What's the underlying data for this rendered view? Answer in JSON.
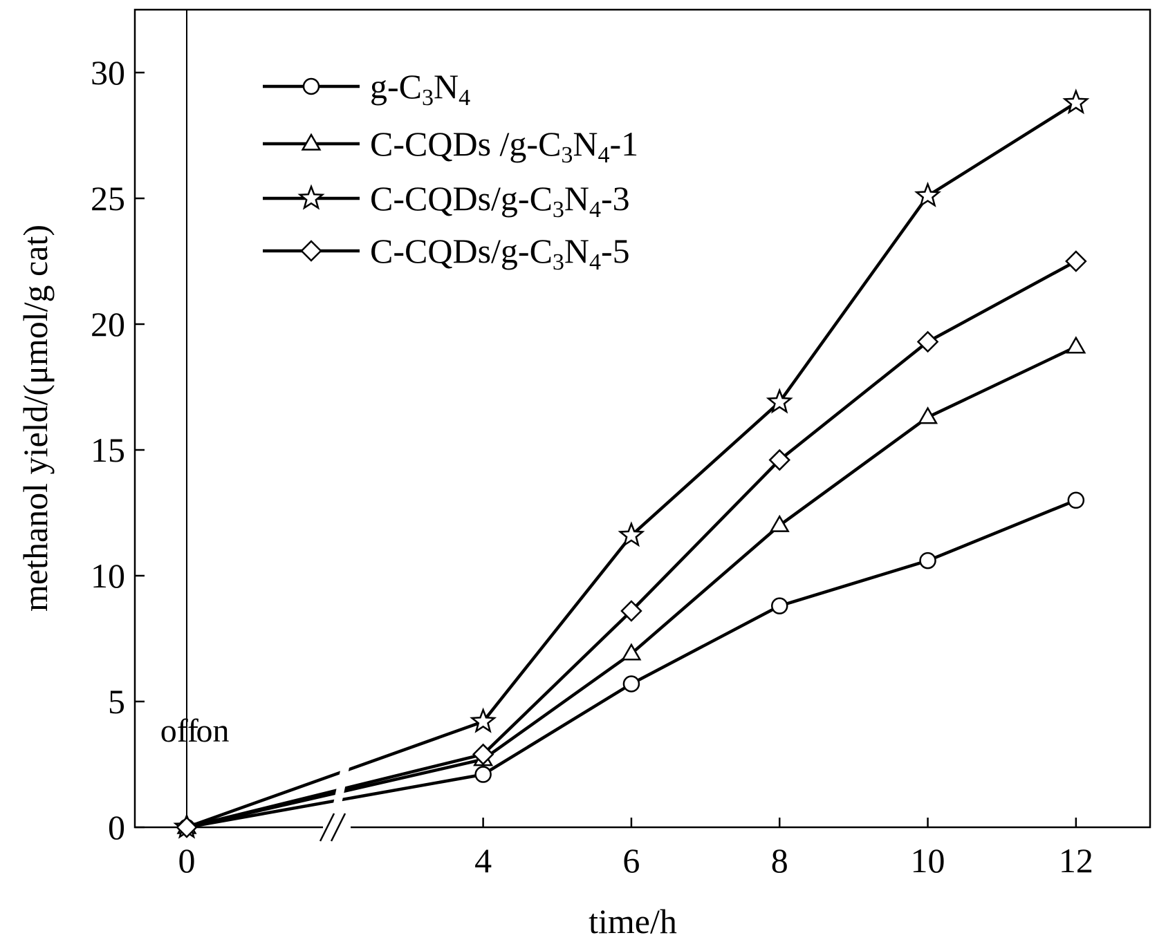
{
  "chart_data": {
    "type": "line",
    "title": "",
    "xlabel": "time/h",
    "ylabel": "methanol yield/(μmol/g cat)",
    "xlim": [
      -0.7,
      13
    ],
    "ylim": [
      0,
      32.5
    ],
    "x_axis_break": [
      1.2,
      3
    ],
    "x": [
      0,
      4,
      6,
      8,
      10,
      12
    ],
    "x_ticks": [
      {
        "value": 0,
        "label": "0"
      },
      {
        "value": 4,
        "label": "4"
      },
      {
        "value": 6,
        "label": "6"
      },
      {
        "value": 8,
        "label": "8"
      },
      {
        "value": 10,
        "label": "10"
      },
      {
        "value": 12,
        "label": "12"
      }
    ],
    "y_ticks": [
      {
        "value": 0,
        "label": "0"
      },
      {
        "value": 5,
        "label": "5"
      },
      {
        "value": 10,
        "label": "10"
      },
      {
        "value": 15,
        "label": "15"
      },
      {
        "value": 20,
        "label": "20"
      },
      {
        "value": 25,
        "label": "25"
      },
      {
        "value": 30,
        "label": "30"
      }
    ],
    "series": [
      {
        "name": "g-C3N4",
        "label_main": "g-C",
        "label_parts": [
          [
            "g-C",
            ""
          ],
          [
            "3",
            "sub"
          ],
          [
            "N",
            ""
          ],
          [
            "4",
            "sub"
          ]
        ],
        "marker": "circle",
        "values": [
          0,
          2.1,
          5.7,
          8.8,
          10.6,
          13.0
        ]
      },
      {
        "name": "C-CQDs /g-C3N4-1",
        "label_parts": [
          [
            "C-CQDs /g-C",
            ""
          ],
          [
            "3",
            "sub"
          ],
          [
            "N",
            ""
          ],
          [
            "4",
            "sub"
          ],
          [
            "-1",
            ""
          ]
        ],
        "marker": "triangle",
        "values": [
          0,
          2.7,
          6.9,
          12.0,
          16.3,
          19.1
        ]
      },
      {
        "name": "C-CQDs/g-C3N4-3",
        "label_parts": [
          [
            "C-CQDs/g-C",
            ""
          ],
          [
            "3",
            "sub"
          ],
          [
            "N",
            ""
          ],
          [
            "4",
            "sub"
          ],
          [
            "-3",
            ""
          ]
        ],
        "marker": "star",
        "values": [
          0,
          4.2,
          11.6,
          16.9,
          25.1,
          28.8
        ]
      },
      {
        "name": "C-CQDs/g-C3N4-5",
        "label_parts": [
          [
            "C-CQDs/g-C",
            ""
          ],
          [
            "3",
            "sub"
          ],
          [
            "N",
            ""
          ],
          [
            "4",
            "sub"
          ],
          [
            "-5",
            ""
          ]
        ],
        "marker": "diamond",
        "values": [
          0,
          2.9,
          8.6,
          14.6,
          19.3,
          22.5
        ]
      }
    ],
    "annotations": [
      {
        "text": "off",
        "x": -0.1,
        "y": 3.4
      },
      {
        "text": "on",
        "x": 0.35,
        "y": 3.4
      }
    ],
    "divider_x": 0,
    "legend": "top-left",
    "grid": false
  }
}
